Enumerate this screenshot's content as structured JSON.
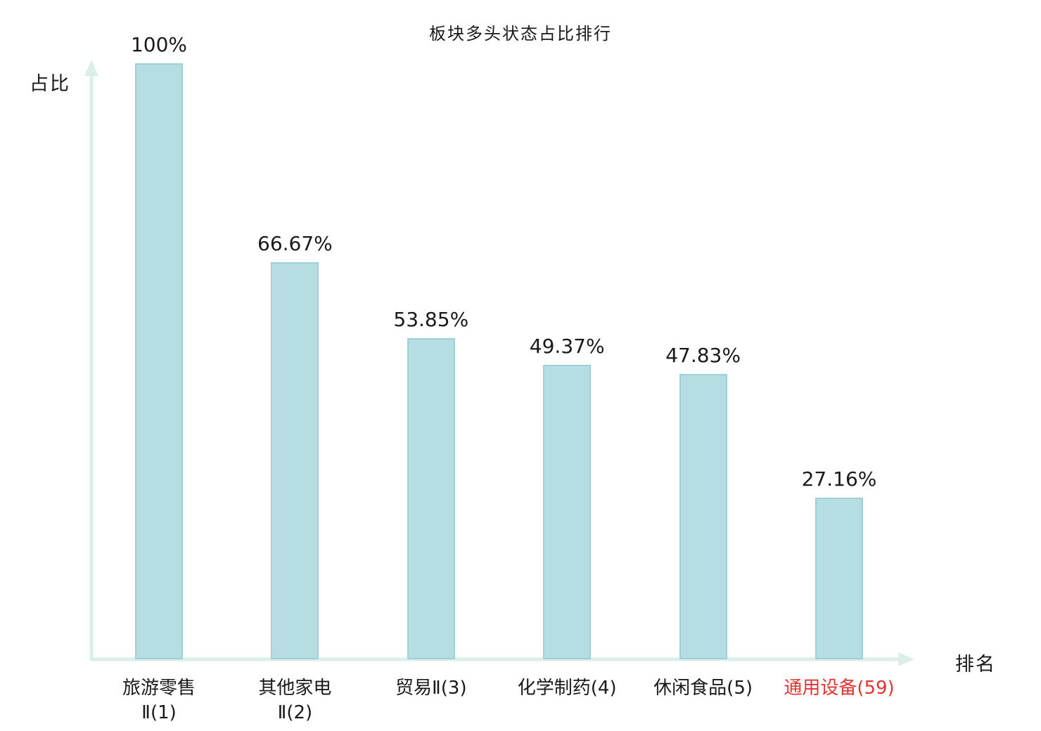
{
  "chart_data": {
    "type": "bar",
    "title": "板块多头状态占比排行",
    "xlabel": "排名",
    "ylabel": "占比",
    "ylim": [
      0,
      100
    ],
    "grid": false,
    "legend": false,
    "categories": [
      "旅游零售Ⅱ(1)",
      "其他家电Ⅱ(2)",
      "贸易Ⅱ(3)",
      "化学制药(4)",
      "休闲食品(5)",
      "通用设备(59)"
    ],
    "values": [
      100,
      66.67,
      53.85,
      49.37,
      47.83,
      27.16
    ],
    "bars": [
      {
        "category_line1": "旅游零售",
        "category_line2": "Ⅱ(1)",
        "value": 100,
        "value_label": "100%",
        "highlight": false
      },
      {
        "category_line1": "其他家电",
        "category_line2": "Ⅱ(2)",
        "value": 66.67,
        "value_label": "66.67%",
        "highlight": false
      },
      {
        "category_line1": "贸易Ⅱ(3)",
        "category_line2": "",
        "value": 53.85,
        "value_label": "53.85%",
        "highlight": false
      },
      {
        "category_line1": "化学制药(4)",
        "category_line2": "",
        "value": 49.37,
        "value_label": "49.37%",
        "highlight": false
      },
      {
        "category_line1": "休闲食品(5)",
        "category_line2": "",
        "value": 47.83,
        "value_label": "47.83%",
        "highlight": false
      },
      {
        "category_line1": "通用设备(59)",
        "category_line2": "",
        "value": 27.16,
        "value_label": "27.16%",
        "highlight": true
      }
    ],
    "colors": {
      "bar_fill": "#b6dde2",
      "bar_border": "#a0d0d7",
      "axis": "#d9efe8",
      "text": "#1a1a1a",
      "highlight_text": "#e53333",
      "background": "#ffffff"
    }
  }
}
